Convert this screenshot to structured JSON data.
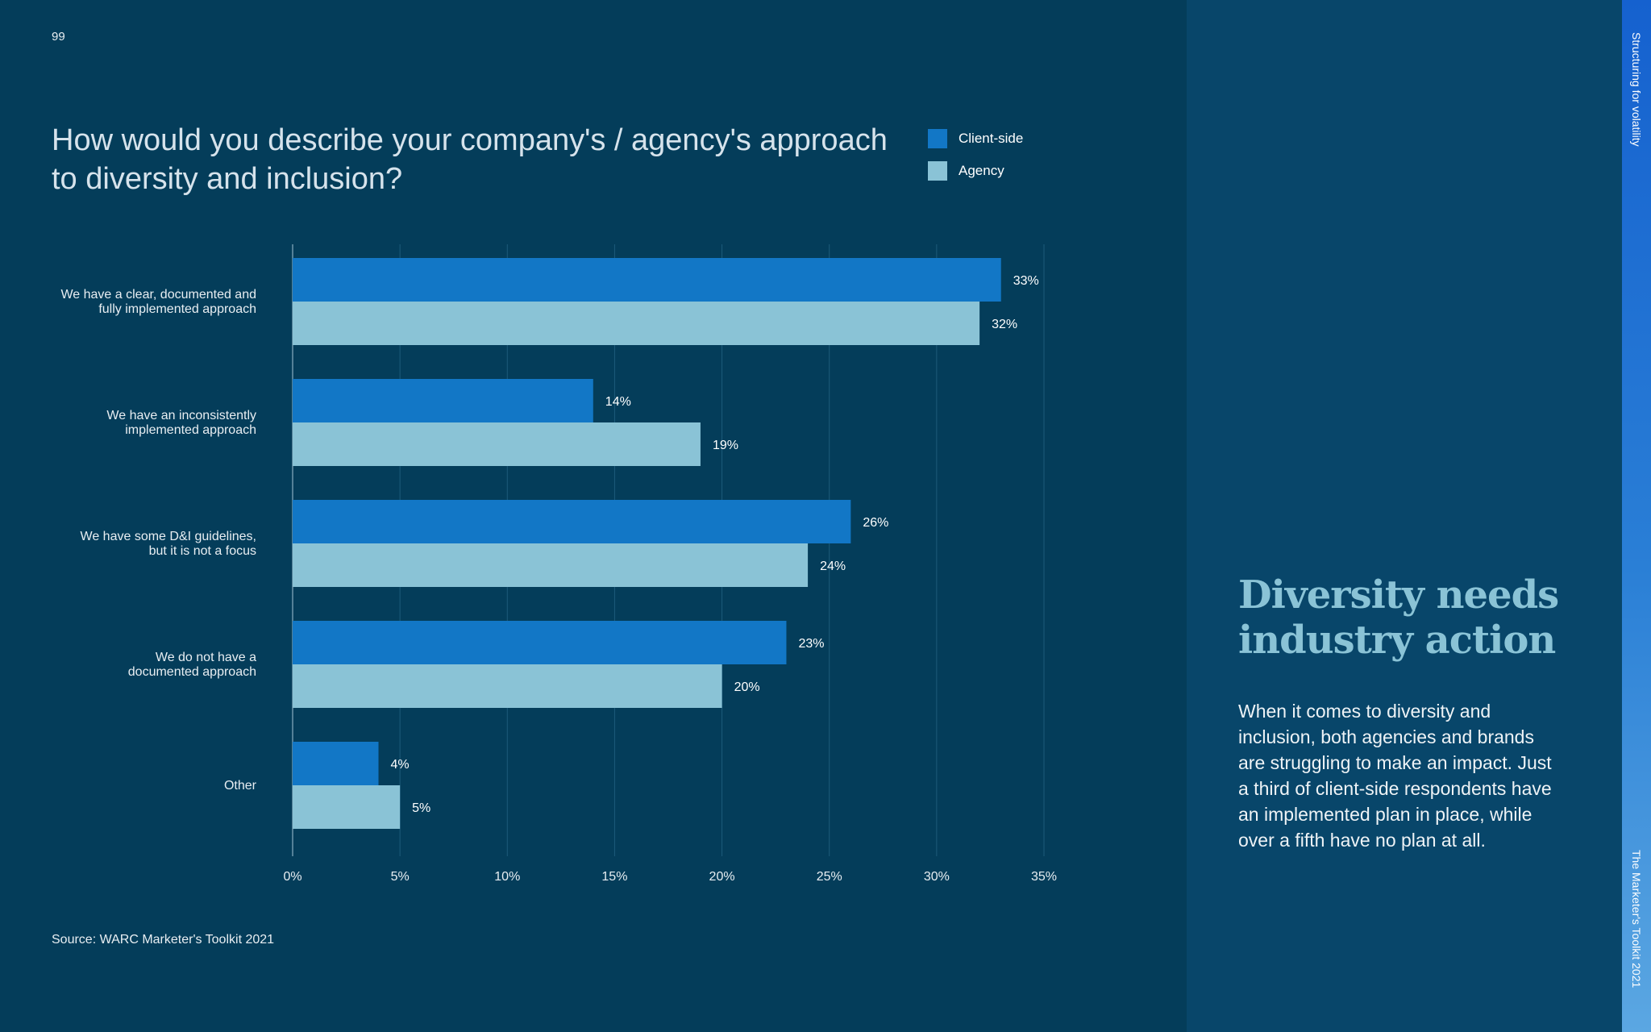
{
  "page": {
    "number": "99",
    "source": "Source: WARC Marketer's Toolkit 2021",
    "section_label": "Structuring for volatility",
    "publication_label": "The Marketer's Toolkit 2021"
  },
  "side_panel": {
    "heading": "Diversity needs industry action",
    "body": "When it comes to diversity and inclusion, both agencies and brands are struggling to make an impact. Just a third of client-side respondents have an implemented plan in place, while over a fifth have no plan at all."
  },
  "colors": {
    "background": "#043d5a",
    "client_side": "#1277c6",
    "agency": "#8ac3d6",
    "heading_accent": "#8ac3d6"
  },
  "chart_data": {
    "type": "bar",
    "orientation": "horizontal",
    "title": "How would you describe your company's / agency's approach to diversity and inclusion?",
    "categories": [
      [
        "We have a clear, documented and",
        "fully implemented approach"
      ],
      [
        "We have an inconsistently",
        "implemented approach"
      ],
      [
        "We have some D&I guidelines,",
        "but it is not a focus"
      ],
      [
        "We do not have a",
        "documented approach"
      ],
      [
        "Other"
      ]
    ],
    "series": [
      {
        "name": "Client-side",
        "color": "#1277c6",
        "values": [
          33,
          14,
          26,
          23,
          4
        ],
        "labels": [
          "33%",
          "14%",
          "26%",
          "23%",
          "4%"
        ]
      },
      {
        "name": "Agency",
        "color": "#8ac3d6",
        "values": [
          32,
          19,
          24,
          20,
          5
        ],
        "labels": [
          "32%",
          "19%",
          "24%",
          "20%",
          "5%"
        ]
      }
    ],
    "xlim": [
      0,
      35
    ],
    "xticks": [
      0,
      5,
      10,
      15,
      20,
      25,
      30,
      35
    ],
    "xtick_labels": [
      "0%",
      "5%",
      "10%",
      "15%",
      "20%",
      "25%",
      "30%",
      "35%"
    ],
    "grid": true,
    "legend": "top-right"
  }
}
